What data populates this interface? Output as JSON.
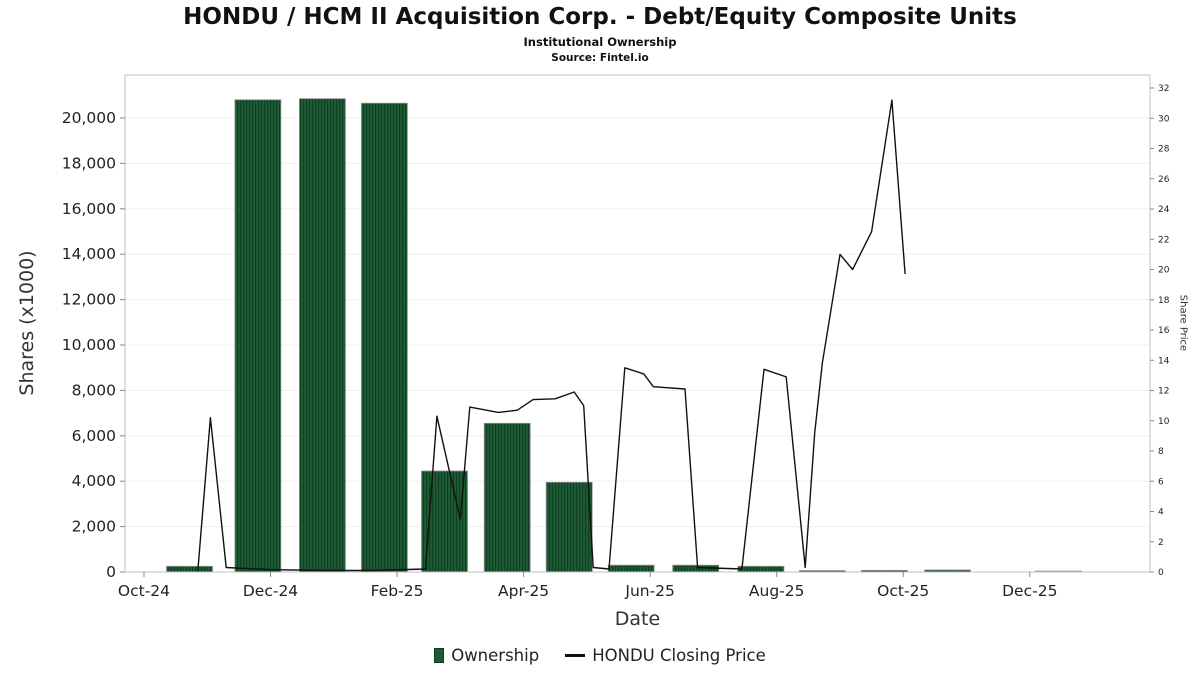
{
  "legend": {
    "ownership": "Ownership",
    "price": "HONDU Closing Price"
  },
  "chart_data": {
    "type": "bar",
    "title": "HONDU / HCM II Acquisition Corp. - Debt/Equity Composite Units",
    "subtitle": "Institutional Ownership",
    "source": "Source: Fintel.io",
    "grid": "horizontal-faint",
    "legend_position": "bottom-center",
    "x_axis": {
      "label": "Date",
      "unit": "months-since-Oct-24",
      "range": [
        -0.3,
        15.9
      ],
      "ticks": [
        {
          "m": 0,
          "label": "Oct-24"
        },
        {
          "m": 2,
          "label": "Dec-24"
        },
        {
          "m": 4,
          "label": "Feb-25"
        },
        {
          "m": 6,
          "label": "Apr-25"
        },
        {
          "m": 8,
          "label": "Jun-25"
        },
        {
          "m": 10,
          "label": "Aug-25"
        },
        {
          "m": 12,
          "label": "Oct-25"
        },
        {
          "m": 14,
          "label": "Dec-25"
        }
      ]
    },
    "y_left": {
      "label": "Shares (x1000)",
      "tick_values": [
        0,
        2000,
        4000,
        6000,
        8000,
        10000,
        12000,
        14000,
        16000,
        18000,
        20000
      ],
      "tick_labels": [
        "0",
        "2,000",
        "4,000",
        "6,000",
        "8,000",
        "10,000",
        "12,000",
        "14,000",
        "16,000",
        "18,000",
        "20,000"
      ],
      "plot_max": 21400
    },
    "y_right": {
      "label": "Share Price",
      "tick_values": [
        0,
        2,
        4,
        6,
        8,
        10,
        12,
        14,
        16,
        18,
        20,
        22,
        24,
        26,
        28,
        30,
        32
      ],
      "max": 32
    },
    "series": [
      {
        "name": "Ownership",
        "type": "bar",
        "axis": "left",
        "color": "#1c5b33",
        "stripe_color": "#113f23",
        "border_color": "#8f8f8f",
        "points_format": [
          "month_offset",
          "shares_x1000"
        ],
        "points": [
          [
            0.72,
            250
          ],
          [
            1.8,
            20800
          ],
          [
            2.82,
            20850
          ],
          [
            3.8,
            20650
          ],
          [
            4.75,
            4450
          ],
          [
            5.74,
            6550
          ],
          [
            6.72,
            3950
          ],
          [
            7.7,
            300
          ],
          [
            8.72,
            300
          ],
          [
            9.75,
            250
          ],
          [
            10.72,
            60
          ],
          [
            11.7,
            70
          ],
          [
            12.7,
            90
          ],
          [
            14.45,
            40
          ]
        ]
      },
      {
        "name": "HONDU Closing Price",
        "type": "line",
        "axis": "right",
        "color": "#111111",
        "points_format": [
          "month_offset",
          "price_usd"
        ],
        "points": [
          [
            0.85,
            0.05
          ],
          [
            1.05,
            10.2
          ],
          [
            1.3,
            0.3
          ],
          [
            2.0,
            0.15
          ],
          [
            3.0,
            0.1
          ],
          [
            3.6,
            0.1
          ],
          [
            4.45,
            0.2
          ],
          [
            4.63,
            10.3
          ],
          [
            5.0,
            3.5
          ],
          [
            5.15,
            10.9
          ],
          [
            5.35,
            10.75
          ],
          [
            5.6,
            10.55
          ],
          [
            5.9,
            10.7
          ],
          [
            6.15,
            11.4
          ],
          [
            6.5,
            11.45
          ],
          [
            6.8,
            11.9
          ],
          [
            6.95,
            11.0
          ],
          [
            7.1,
            0.3
          ],
          [
            7.35,
            0.2
          ],
          [
            7.6,
            13.5
          ],
          [
            7.9,
            13.1
          ],
          [
            8.05,
            12.25
          ],
          [
            8.55,
            12.1
          ],
          [
            8.75,
            0.3
          ],
          [
            9.45,
            0.2
          ],
          [
            9.8,
            13.4
          ],
          [
            10.15,
            12.9
          ],
          [
            10.45,
            0.3
          ],
          [
            10.6,
            9.2
          ],
          [
            10.72,
            13.8
          ],
          [
            11.0,
            21.0
          ],
          [
            11.2,
            20.0
          ],
          [
            11.5,
            22.5
          ],
          [
            11.82,
            31.2
          ],
          [
            12.03,
            19.7
          ]
        ]
      }
    ]
  }
}
